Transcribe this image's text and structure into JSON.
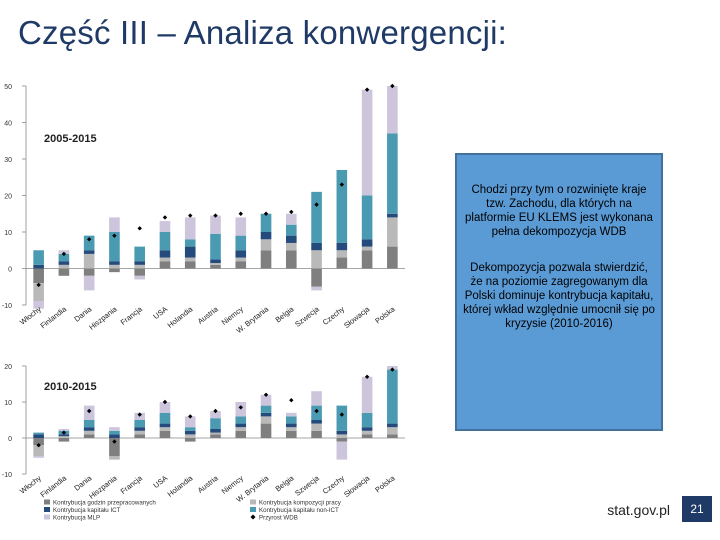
{
  "slide": {
    "title": "Część III – Analiza konwergencji:",
    "callout": [
      "Chodzi przy tym o rozwinięte kraje tzw. Zachodu, dla których na platformie EU KLEMS jest wykonana pełna dekompozycja WDB",
      "Dekompozycja pozwala stwierdzić, że na poziomie zagregowanym dla Polski dominuje kontrybucja kapitału, której wkład względnie umocnił się po kryzysie (2010-2016)"
    ],
    "source": "stat.gov.pl",
    "page_number": "21"
  },
  "chart_data": [
    {
      "type": "bar",
      "stacked": true,
      "title": "2005-2015",
      "categories": [
        "Włochy",
        "Finlandia",
        "Dania",
        "Hiszpania",
        "Francja",
        "USA",
        "Holandia",
        "Austria",
        "Niemcy",
        "W. Brytania",
        "Belgia",
        "Szwecja",
        "Czechy",
        "Słowacja",
        "Polska"
      ],
      "ylim": [
        -10,
        50
      ],
      "yticks": [
        -10,
        0,
        10,
        20,
        30,
        40,
        50
      ],
      "series": [
        {
          "name": "Kontrybucja godzin przepracowanych",
          "color": "#7f7f7f",
          "values": [
            -4,
            -2,
            -2,
            -1,
            -2,
            2,
            2,
            1,
            2,
            5,
            5,
            -5,
            3,
            5,
            6
          ]
        },
        {
          "name": "Kontrybucja kompozycji pracy",
          "color": "#b9b9b9",
          "values": [
            -5,
            1,
            4,
            1,
            1,
            1,
            1,
            0.5,
            1,
            3,
            2,
            5,
            2,
            1,
            8
          ]
        },
        {
          "name": "Kontrybucja kapitału ICT",
          "color": "#254a7c",
          "values": [
            1,
            1,
            1,
            1,
            1,
            2,
            3,
            1,
            2,
            2,
            2,
            2,
            2,
            2,
            1
          ]
        },
        {
          "name": "Kontrybucja kapitału non-ICT",
          "color": "#4a9ab1",
          "values": [
            4,
            2,
            4,
            8,
            4,
            5,
            2,
            7,
            4,
            5,
            3,
            14,
            20,
            12,
            22
          ]
        },
        {
          "name": "Kontrybucja MLP",
          "color": "#cdc5dc",
          "values": [
            -2,
            1,
            -4,
            4,
            -1,
            3,
            6,
            5,
            5,
            0,
            3,
            -1,
            0,
            29,
            13
          ]
        }
      ],
      "growth": {
        "name": "Przyrost WDB",
        "values": [
          -4.5,
          4,
          8,
          9,
          11,
          14,
          14.5,
          14.5,
          15,
          15,
          15.5,
          17.5,
          23,
          49,
          50
        ]
      }
    },
    {
      "type": "bar",
      "stacked": true,
      "title": "2010-2015",
      "categories": [
        "Włochy",
        "Finlandia",
        "Dania",
        "Hiszpania",
        "Francja",
        "USA",
        "Holandia",
        "Austria",
        "Niemcy",
        "W. Brytania",
        "Belgia",
        "Szwecja",
        "Czechy",
        "Słowacja",
        "Polska"
      ],
      "ylim": [
        -10,
        20
      ],
      "yticks": [
        -10,
        0,
        10,
        20
      ],
      "series": [
        {
          "name": "Kontrybucja godzin przepracowanych",
          "color": "#7f7f7f",
          "values": [
            -2,
            -1,
            1,
            -5,
            1,
            2,
            -1,
            1,
            2,
            4,
            2,
            2,
            -1,
            1,
            1
          ]
        },
        {
          "name": "Kontrybucja kompozycji pracy",
          "color": "#b9b9b9",
          "values": [
            -3,
            0.5,
            1,
            -1,
            1,
            1,
            1,
            0.5,
            1,
            2,
            1,
            2,
            1,
            1,
            2
          ]
        },
        {
          "name": "Kontrybucja kapitału ICT",
          "color": "#254a7c",
          "values": [
            1,
            0.5,
            1,
            1,
            1,
            1,
            1,
            1,
            1,
            1,
            1,
            1,
            1,
            1,
            1
          ]
        },
        {
          "name": "Kontrybucja kapitału non-ICT",
          "color": "#4a9ab1",
          "values": [
            0.5,
            1,
            2,
            1,
            2,
            3,
            1,
            3,
            2,
            2,
            2,
            4,
            7,
            4,
            15
          ]
        },
        {
          "name": "Kontrybucja MLP",
          "color": "#cdc5dc",
          "values": [
            -0.5,
            0.5,
            4,
            1,
            2,
            3,
            3,
            2,
            4,
            3,
            1,
            4,
            -5,
            10,
            1
          ]
        }
      ],
      "growth": {
        "name": "Przyrost WDB",
        "values": [
          -2,
          1.5,
          7.5,
          -1,
          6.5,
          10,
          6,
          7.5,
          8.5,
          12,
          10.5,
          7.5,
          6.5,
          17,
          19
        ]
      }
    }
  ],
  "legend": [
    {
      "label": "Kontrybucja godzin przepracowanych",
      "color": "#7f7f7f"
    },
    {
      "label": "Kontrybucja kompozycji pracy",
      "color": "#b9b9b9"
    },
    {
      "label": "Kontrybucja kapitału ICT",
      "color": "#254a7c"
    },
    {
      "label": "Kontrybucja kapitału non-ICT",
      "color": "#4a9ab1"
    },
    {
      "label": "Kontrybucja MLP",
      "color": "#cdc5dc"
    },
    {
      "label": "Przyrost WDB",
      "color": "#000000"
    }
  ]
}
